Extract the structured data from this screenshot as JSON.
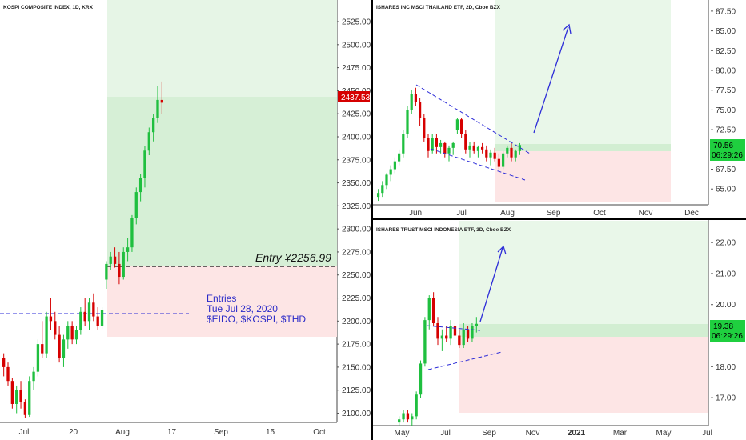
{
  "colors": {
    "up": "#1fbf3f",
    "down": "#d60000",
    "profit": "#d9f2d9",
    "profit_light": "#e9f7e9",
    "loss": "#fde4e4",
    "pattern": "#2d2dd8",
    "axis": "#333333",
    "frame": "#000000"
  },
  "chart_data": [
    {
      "id": "kospi",
      "type": "candlestick",
      "title": "KOSPI COMPOSITE INDEX, 1D, KRX",
      "ylim": [
        2090,
        2545
      ],
      "yticks": [
        "2100.00",
        "2125.00",
        "2150.00",
        "2175.00",
        "2200.00",
        "2225.00",
        "2250.00",
        "2275.00",
        "2300.00",
        "2325.00",
        "2350.00",
        "2375.00",
        "2400.00",
        "2425.00",
        "2450.00",
        "2475.00",
        "2500.00",
        "2525.00"
      ],
      "xticks": [
        "Jul",
        "20",
        "Aug",
        "17",
        "Sep",
        "15",
        "Oct"
      ],
      "last_price": "2437.53",
      "entry_label": "Entry ¥2256.99",
      "entry_price": 2256.99,
      "note_lines": [
        "Entries",
        "Tue Jul 28, 2020",
        "$EIDO, $KOSPI, $THD"
      ],
      "candles": [
        [
          2160,
          2165,
          2140,
          2150
        ],
        [
          2150,
          2155,
          2130,
          2135
        ],
        [
          2135,
          2138,
          2105,
          2110
        ],
        [
          2110,
          2130,
          2100,
          2125
        ],
        [
          2125,
          2135,
          2105,
          2112
        ],
        [
          2112,
          2115,
          2095,
          2098
        ],
        [
          2098,
          2140,
          2096,
          2135
        ],
        [
          2135,
          2150,
          2125,
          2145
        ],
        [
          2145,
          2180,
          2140,
          2175
        ],
        [
          2175,
          2200,
          2160,
          2165
        ],
        [
          2165,
          2210,
          2160,
          2205
        ],
        [
          2205,
          2225,
          2190,
          2200
        ],
        [
          2200,
          2210,
          2180,
          2185
        ],
        [
          2185,
          2195,
          2155,
          2160
        ],
        [
          2160,
          2185,
          2150,
          2180
        ],
        [
          2180,
          2200,
          2170,
          2195
        ],
        [
          2195,
          2200,
          2175,
          2180
        ],
        [
          2180,
          2195,
          2175,
          2190
        ],
        [
          2190,
          2215,
          2185,
          2210
        ],
        [
          2210,
          2225,
          2195,
          2200
        ],
        [
          2200,
          2225,
          2190,
          2220
        ],
        [
          2220,
          2230,
          2200,
          2205
        ],
        [
          2205,
          2215,
          2190,
          2195
        ],
        [
          2195,
          2215,
          2192,
          2212
        ],
        [
          2245,
          2265,
          2235,
          2262
        ],
        [
          2262,
          2275,
          2255,
          2270
        ],
        [
          2270,
          2280,
          2258,
          2262
        ],
        [
          2262,
          2275,
          2240,
          2248
        ],
        [
          2248,
          2280,
          2245,
          2275
        ],
        [
          2275,
          2290,
          2265,
          2280
        ],
        [
          2280,
          2315,
          2275,
          2312
        ],
        [
          2312,
          2345,
          2305,
          2340
        ],
        [
          2340,
          2360,
          2330,
          2355
        ],
        [
          2355,
          2390,
          2345,
          2385
        ],
        [
          2385,
          2410,
          2380,
          2405
        ],
        [
          2405,
          2425,
          2395,
          2420
        ],
        [
          2420,
          2455,
          2415,
          2440
        ],
        [
          2440,
          2460,
          2425,
          2437
        ]
      ]
    },
    {
      "id": "thd",
      "type": "candlestick",
      "title": "ISHARES INC MSCI THAILAND ETF, 2D, Cboe BZX",
      "ylim": [
        63,
        88.5
      ],
      "yticks": [
        "65.00",
        "67.50",
        "70.00",
        "72.50",
        "75.00",
        "77.50",
        "80.00",
        "82.50",
        "85.00",
        "87.50"
      ],
      "xticks": [
        "Jun",
        "Jul",
        "Aug",
        "Sep",
        "Oct",
        "Nov",
        "Dec"
      ],
      "last_price": "70.56",
      "countdown": "06:29:26",
      "candles": [
        [
          64,
          65,
          63.5,
          64.5
        ],
        [
          64.5,
          66,
          64,
          65.5
        ],
        [
          65.5,
          67,
          65,
          66.8
        ],
        [
          66.8,
          68,
          66,
          67.5
        ],
        [
          67.5,
          69,
          67,
          68.5
        ],
        [
          68.5,
          70,
          68,
          69.5
        ],
        [
          69.5,
          72.5,
          69,
          72
        ],
        [
          72,
          75.5,
          71.5,
          75
        ],
        [
          75,
          77.5,
          74.5,
          77
        ],
        [
          77,
          77.8,
          75.5,
          76
        ],
        [
          76,
          76.5,
          73,
          74
        ],
        [
          74,
          74.5,
          71,
          71.5
        ],
        [
          71.5,
          72,
          69,
          69.8
        ],
        [
          69.8,
          72,
          69.5,
          71.5
        ],
        [
          71.5,
          72,
          69.5,
          70.3
        ],
        [
          70.3,
          71.2,
          69.5,
          70.8
        ],
        [
          70.8,
          71,
          69,
          69.5
        ],
        [
          69.5,
          70.5,
          68.5,
          70.2
        ],
        [
          70.2,
          71,
          69.3,
          70.8
        ],
        [
          72.5,
          74,
          72,
          73.8
        ],
        [
          73.8,
          74,
          71.5,
          72
        ],
        [
          72,
          72.5,
          69.5,
          70
        ],
        [
          70,
          71,
          69,
          70.5
        ],
        [
          70.5,
          71,
          69.5,
          69.8
        ],
        [
          69.8,
          70.5,
          69,
          70.3
        ],
        [
          70.3,
          70.8,
          69.5,
          70
        ],
        [
          70,
          70.5,
          68.5,
          69
        ],
        [
          69,
          70,
          68,
          69.6
        ],
        [
          69.6,
          70.2,
          68.5,
          68.8
        ],
        [
          68.8,
          69.5,
          67.5,
          67.8
        ],
        [
          67.8,
          69.8,
          67.5,
          69.5
        ],
        [
          69.5,
          70.5,
          69,
          70.2
        ],
        [
          70.2,
          70.8,
          68.5,
          69
        ],
        [
          69,
          70,
          68.5,
          69.8
        ],
        [
          69.8,
          70.8,
          69.3,
          70.56
        ]
      ]
    },
    {
      "id": "eido",
      "type": "candlestick",
      "title": "ISHARES TRUST MSCI INDONESIA ETF, 3D, Cboe BZX",
      "ylim": [
        16.1,
        22.7
      ],
      "yticks": [
        "17.00",
        "18.00",
        "19.00",
        "20.00",
        "21.00",
        "22.00"
      ],
      "xticks": [
        "May",
        "Jul",
        "Sep",
        "Nov",
        "2021",
        "Mar",
        "May",
        "Jul"
      ],
      "last_price": "19.38",
      "countdown": "06:29:26",
      "candles": [
        [
          16.2,
          16.4,
          16.1,
          16.3
        ],
        [
          16.3,
          16.6,
          16.2,
          16.5
        ],
        [
          16.5,
          16.6,
          16.2,
          16.3
        ],
        [
          16.3,
          16.5,
          16.1,
          16.4
        ],
        [
          16.4,
          17.2,
          16.3,
          17.1
        ],
        [
          17.1,
          18.2,
          17,
          18.1
        ],
        [
          18.1,
          19.6,
          18,
          19.5
        ],
        [
          19.5,
          20.3,
          19.2,
          20.2
        ],
        [
          20.2,
          20.4,
          19.3,
          19.4
        ],
        [
          19.4,
          19.6,
          18.7,
          18.9
        ],
        [
          18.9,
          19.2,
          18.5,
          19
        ],
        [
          19,
          19.3,
          18.8,
          18.9
        ],
        [
          18.9,
          19.5,
          18.7,
          19.3
        ],
        [
          19.3,
          19.4,
          18.9,
          19
        ],
        [
          19,
          19.2,
          18.6,
          18.7
        ],
        [
          18.7,
          19.4,
          18.6,
          19.2
        ],
        [
          19.2,
          19.3,
          18.8,
          18.9
        ],
        [
          18.9,
          19.4,
          18.8,
          19.3
        ],
        [
          19.3,
          19.6,
          19.1,
          19.38
        ]
      ]
    }
  ]
}
